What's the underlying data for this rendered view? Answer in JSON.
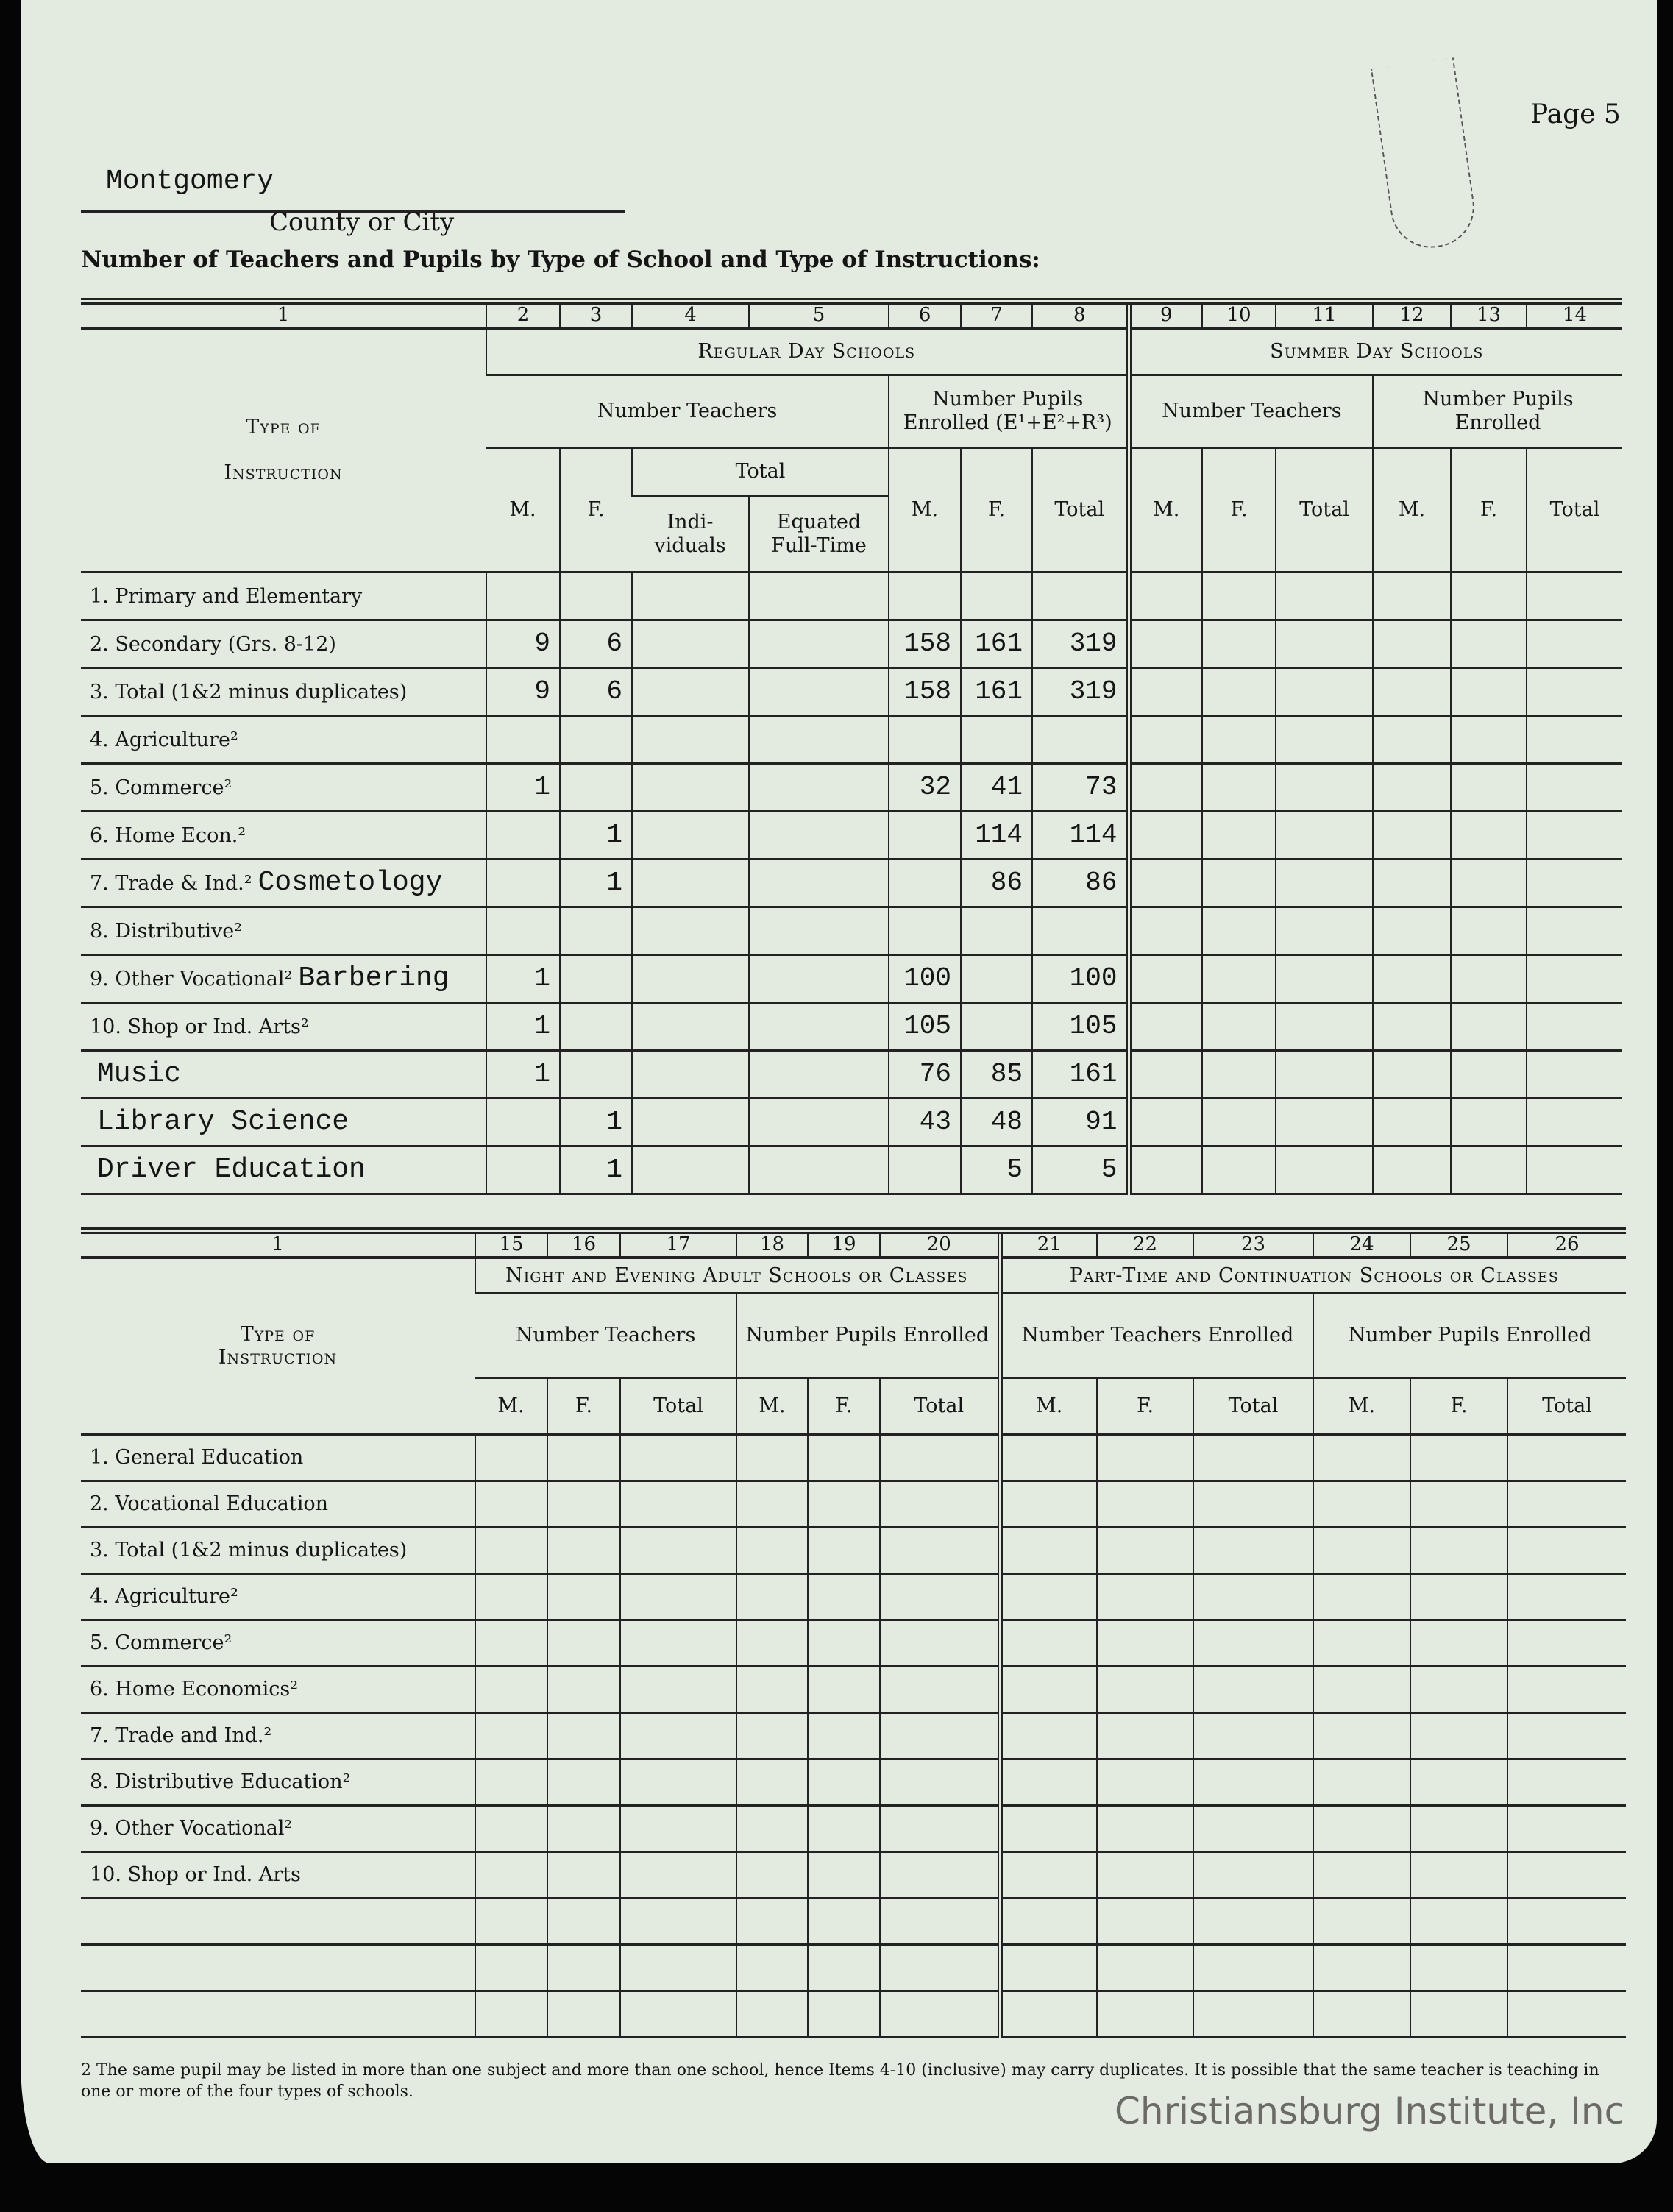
{
  "header": {
    "page_label": "Page 5",
    "county_value": "Montgomery",
    "county_label": "County or City",
    "title": "Number of Teachers and Pupils by Type of School and Type of Instructions:"
  },
  "table1": {
    "column_numbers": [
      "1",
      "2",
      "3",
      "4",
      "5",
      "6",
      "7",
      "8",
      "9",
      "10",
      "11",
      "12",
      "13",
      "14"
    ],
    "type_label_1": "Type of",
    "type_label_2": "Instruction",
    "regular_day": "Regular Day Schools",
    "summer_day": "Summer Day Schools",
    "num_teachers": "Number Teachers",
    "num_pupils_regular": "Number Pupils Enrolled (E¹+E²+R³)",
    "num_pupils_summer": "Number Pupils Enrolled",
    "m": "M.",
    "f": "F.",
    "total": "Total",
    "individuals": "Indi-viduals",
    "equated": "Equated Full-Time",
    "rows": [
      {
        "label": "1. Primary and Elementary",
        "typed": "",
        "values": [
          "",
          "",
          "",
          "",
          "",
          "",
          ""
        ]
      },
      {
        "label": "2. Secondary (Grs. 8-12)",
        "typed": "",
        "values": [
          "9",
          "6",
          "",
          "",
          "158",
          "161",
          "319"
        ]
      },
      {
        "label": "3. Total (1&2 minus duplicates)",
        "typed": "",
        "values": [
          "9",
          "6",
          "",
          "",
          "158",
          "161",
          "319"
        ]
      },
      {
        "label": "4. Agriculture²",
        "typed": "",
        "values": [
          "",
          "",
          "",
          "",
          "",
          "",
          ""
        ]
      },
      {
        "label": "5. Commerce²",
        "typed": "",
        "values": [
          "1",
          "",
          "",
          "",
          "32",
          "41",
          "73"
        ]
      },
      {
        "label": "6. Home Econ.²",
        "typed": "",
        "values": [
          "",
          "1",
          "",
          "",
          "",
          "114",
          "114"
        ]
      },
      {
        "label": "7. Trade & Ind.²",
        "typed": "Cosmetology",
        "values": [
          "",
          "1",
          "",
          "",
          "",
          "86",
          "86"
        ]
      },
      {
        "label": "8. Distributive²",
        "typed": "",
        "values": [
          "",
          "",
          "",
          "",
          "",
          "",
          ""
        ]
      },
      {
        "label": "9. Other Vocational²",
        "typed": "Barbering",
        "values": [
          "1",
          "",
          "",
          "",
          "100",
          "",
          "100"
        ]
      },
      {
        "label": "10. Shop or Ind. Arts²",
        "typed": "",
        "values": [
          "1",
          "",
          "",
          "",
          "105",
          "",
          "105"
        ]
      },
      {
        "label": "",
        "typed": "Music",
        "values": [
          "1",
          "",
          "",
          "",
          "76",
          "85",
          "161"
        ]
      },
      {
        "label": "",
        "typed": "Library Science",
        "values": [
          "",
          "1",
          "",
          "",
          "43",
          "48",
          "91"
        ]
      },
      {
        "label": "",
        "typed": "Driver Education",
        "values": [
          "",
          "1",
          "",
          "",
          "",
          "5",
          "5"
        ]
      }
    ]
  },
  "table2": {
    "column_numbers": [
      "1",
      "15",
      "16",
      "17",
      "18",
      "19",
      "20",
      "21",
      "22",
      "23",
      "24",
      "25",
      "26"
    ],
    "type_label_1": "Type of",
    "type_label_2": "Instruction",
    "night_evening": "Night and Evening Adult Schools or Classes",
    "part_time": "Part-Time and Continuation Schools or Classes",
    "num_teachers": "Number Teachers",
    "num_pupils": "Number Pupils Enrolled",
    "num_teachers_enrolled": "Number Teachers Enrolled",
    "m": "M.",
    "f": "F.",
    "total": "Total",
    "rows": [
      "1.  General Education",
      "2.  Vocational Education",
      "3.  Total (1&2 minus duplicates)",
      "4.  Agriculture²",
      "5.  Commerce²",
      "6.  Home Economics²",
      "7.  Trade and Ind.²",
      "8.  Distributive Education²",
      "9.  Other Vocational²",
      "10.  Shop or Ind. Arts",
      "",
      "",
      ""
    ]
  },
  "footnote": "2 The same pupil may be listed in more than one subject and more than one school, hence Items 4-10 (inclusive) may carry duplicates. It is possible that the same teacher is teaching in one or more of the four types of schools.",
  "watermark": "Christiansburg Institute, Inc"
}
